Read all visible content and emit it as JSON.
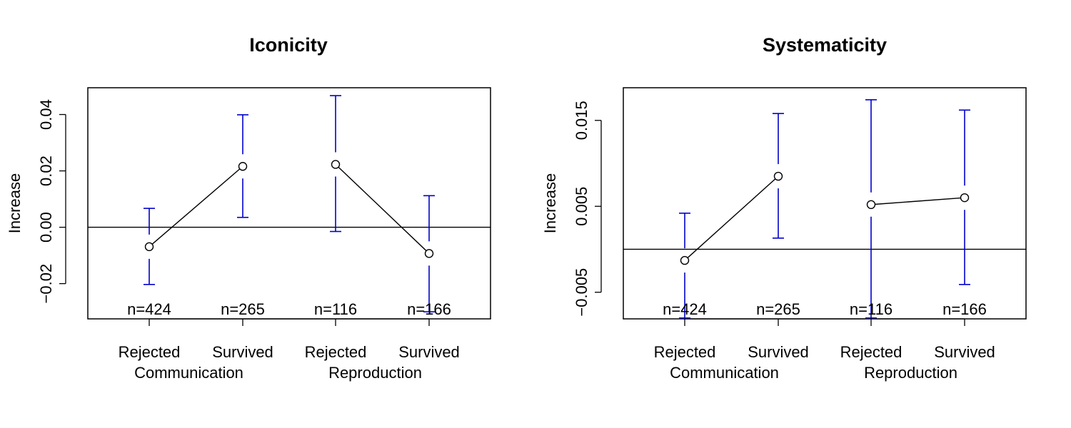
{
  "chart_data": [
    {
      "type": "line",
      "title": "Iconicity",
      "ylabel": "Increase",
      "ylim": [
        -0.0325,
        0.0495
      ],
      "yticks": [
        -0.02,
        0.0,
        0.02,
        0.04
      ],
      "ytick_labels": [
        "−0.02",
        "0.00",
        "0.02",
        "0.04"
      ],
      "categories": [
        "Rejected",
        "Survived",
        "Rejected",
        "Survived"
      ],
      "groups": [
        {
          "label": "Communication",
          "indices": [
            0,
            1
          ]
        },
        {
          "label": "Reproduction",
          "indices": [
            2,
            3
          ]
        }
      ],
      "values": [
        -0.0069,
        0.0216,
        0.0223,
        -0.0093
      ],
      "ci_low": [
        -0.0203,
        0.0035,
        -0.0015,
        -0.03
      ],
      "ci_high": [
        0.0067,
        0.0399,
        0.0467,
        0.0112
      ],
      "n_labels": [
        "n=424",
        "n=265",
        "n=116",
        "n=166"
      ],
      "reference_line": 0,
      "grid": false,
      "point_color": "#000000",
      "errorbar_color": "#0000cc"
    },
    {
      "type": "line",
      "title": "Systematicity",
      "ylabel": "Increase",
      "ylim": [
        -0.0081,
        0.0188
      ],
      "yticks": [
        -0.005,
        0.005,
        0.015
      ],
      "ytick_labels": [
        "−0.005",
        "0.005",
        "0.015"
      ],
      "categories": [
        "Rejected",
        "Survived",
        "Rejected",
        "Survived"
      ],
      "groups": [
        {
          "label": "Communication",
          "indices": [
            0,
            1
          ]
        },
        {
          "label": "Reproduction",
          "indices": [
            2,
            3
          ]
        }
      ],
      "values": [
        -0.0013,
        0.0085,
        0.0052,
        0.006
      ],
      "ci_low": [
        -0.008,
        0.0013,
        -0.008,
        -0.0041
      ],
      "ci_high": [
        0.0042,
        0.0158,
        0.0174,
        0.0162
      ],
      "n_labels": [
        "n=424",
        "n=265",
        "n=116",
        "n=166"
      ],
      "reference_line": 0,
      "grid": false,
      "point_color": "#000000",
      "errorbar_color": "#0000cc"
    }
  ]
}
